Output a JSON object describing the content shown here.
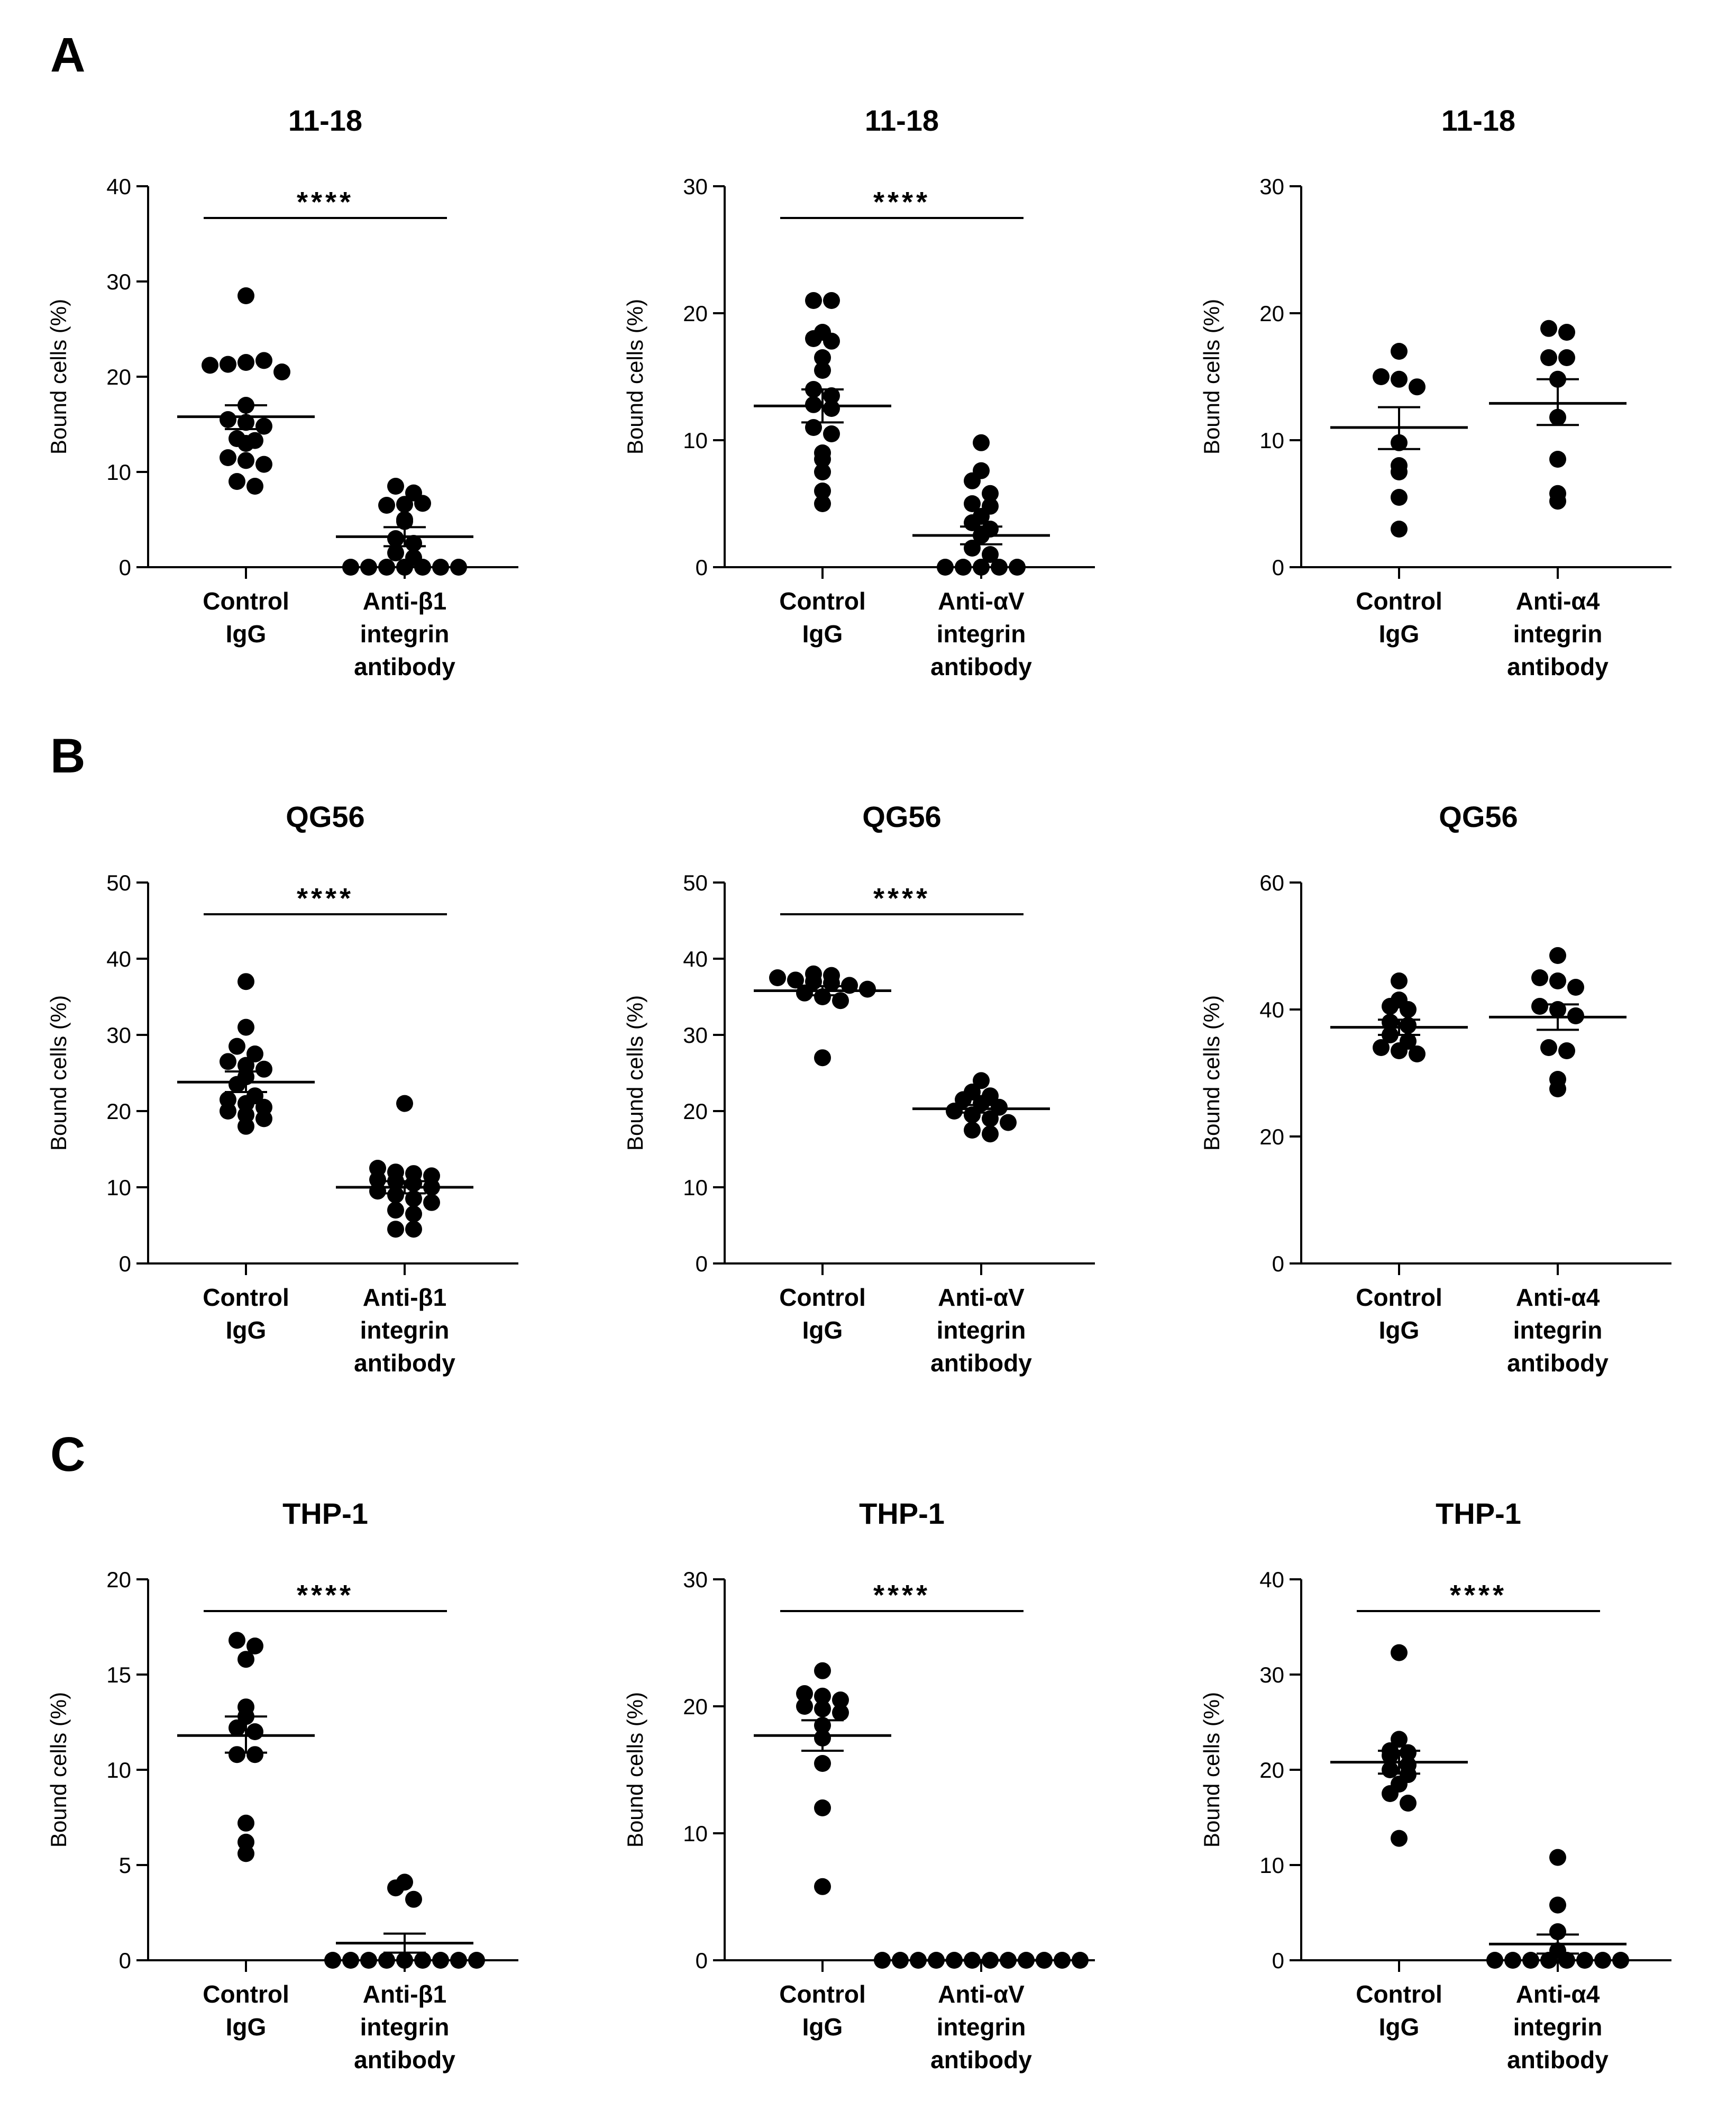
{
  "panel_letters": [
    "A",
    "B",
    "C"
  ],
  "chart_data": [
    {
      "type": "scatter",
      "panel": "A",
      "title": "11-18",
      "ylabel": "Bound cells (%)",
      "ylim": [
        0,
        40
      ],
      "yticks": [
        0,
        10,
        20,
        30,
        40
      ],
      "significance": "****",
      "categories": [
        [
          "Control",
          "IgG"
        ],
        [
          "Anti-β1",
          "integrin",
          "antibody"
        ]
      ],
      "series": [
        {
          "name": "Control IgG",
          "mean": 15.8,
          "sem_low": 14.5,
          "sem_high": 17.0,
          "values": [
            28.5,
            21.2,
            21.3,
            21.5,
            21.7,
            20.5,
            17.0,
            15.5,
            15.2,
            14.8,
            13.5,
            13.3,
            13.0,
            11.5,
            11.2,
            10.8,
            9.0,
            8.5
          ]
        },
        {
          "name": "Anti-β1 integrin antibody",
          "mean": 3.2,
          "sem_low": 2.2,
          "sem_high": 4.2,
          "values": [
            8.5,
            7.8,
            6.5,
            6.6,
            6.7,
            5.0,
            4.8,
            3.0,
            2.5,
            1.5,
            1.0,
            0,
            0,
            0,
            0,
            0,
            0,
            0
          ]
        }
      ]
    },
    {
      "type": "scatter",
      "panel": "A",
      "title": "11-18",
      "ylabel": "Bound cells (%)",
      "ylim": [
        0,
        30
      ],
      "yticks": [
        0,
        10,
        20,
        30
      ],
      "significance": "****",
      "categories": [
        [
          "Control",
          "IgG"
        ],
        [
          "Anti-αV",
          "integrin",
          "antibody"
        ]
      ],
      "series": [
        {
          "name": "Control IgG",
          "mean": 12.7,
          "sem_low": 11.4,
          "sem_high": 14.0,
          "values": [
            21.0,
            21.0,
            18.5,
            18.0,
            17.8,
            16.5,
            15.5,
            14.0,
            13.5,
            12.8,
            12.5,
            11.0,
            10.5,
            9.0,
            8.5,
            7.5,
            6.0,
            5.0
          ]
        },
        {
          "name": "Anti-αV integrin antibody",
          "mean": 2.5,
          "sem_low": 1.8,
          "sem_high": 3.2,
          "values": [
            9.8,
            7.6,
            6.8,
            5.8,
            5.0,
            4.8,
            4.0,
            3.5,
            3.0,
            2.5,
            1.5,
            1.0,
            0,
            0,
            0,
            0,
            0
          ]
        }
      ]
    },
    {
      "type": "scatter",
      "panel": "A",
      "title": "11-18",
      "ylabel": "Bound cells (%)",
      "ylim": [
        0,
        30
      ],
      "yticks": [
        0,
        10,
        20,
        30
      ],
      "significance": "",
      "categories": [
        [
          "Control",
          "IgG"
        ],
        [
          "Anti-α4",
          "integrin",
          "antibody"
        ]
      ],
      "series": [
        {
          "name": "Control IgG",
          "mean": 11.0,
          "sem_low": 9.3,
          "sem_high": 12.6,
          "values": [
            17.0,
            15.0,
            14.8,
            14.2,
            9.8,
            8.0,
            7.5,
            5.5,
            3.0
          ]
        },
        {
          "name": "Anti-α4 integrin antibody",
          "mean": 12.9,
          "sem_low": 11.2,
          "sem_high": 14.8,
          "values": [
            18.8,
            18.5,
            16.5,
            16.5,
            14.8,
            11.8,
            8.5,
            5.8,
            5.2
          ]
        }
      ]
    },
    {
      "type": "scatter",
      "panel": "B",
      "title": "QG56",
      "ylabel": "Bound cells (%)",
      "ylim": [
        0,
        50
      ],
      "yticks": [
        0,
        10,
        20,
        30,
        40,
        50
      ],
      "significance": "****",
      "categories": [
        [
          "Control",
          "IgG"
        ],
        [
          "Anti-β1",
          "integrin",
          "antibody"
        ]
      ],
      "series": [
        {
          "name": "Control IgG",
          "mean": 23.8,
          "sem_low": 22.5,
          "sem_high": 25.2,
          "values": [
            37.0,
            31.0,
            28.5,
            27.5,
            26.5,
            26.0,
            25.5,
            24.5,
            23.5,
            22.0,
            21.5,
            21.0,
            20.5,
            20.0,
            19.5,
            19.0,
            18.0
          ]
        },
        {
          "name": "Anti-β1 integrin antibody",
          "mean": 10.0,
          "sem_low": 9.2,
          "sem_high": 10.8,
          "values": [
            21.0,
            12.5,
            12.0,
            11.8,
            11.5,
            11.0,
            10.8,
            10.5,
            10.0,
            9.5,
            9.0,
            8.5,
            8.0,
            7.0,
            6.5,
            4.5,
            4.5
          ]
        }
      ]
    },
    {
      "type": "scatter",
      "panel": "B",
      "title": "QG56",
      "ylabel": "Bound cells (%)",
      "ylim": [
        0,
        50
      ],
      "yticks": [
        0,
        10,
        20,
        30,
        40,
        50
      ],
      "significance": "****",
      "categories": [
        [
          "Control",
          "IgG"
        ],
        [
          "Anti-αV",
          "integrin",
          "antibody"
        ]
      ],
      "series": [
        {
          "name": "Control IgG",
          "mean": 35.8,
          "sem_low": 35.2,
          "sem_high": 36.4,
          "values": [
            38.0,
            37.8,
            37.5,
            37.2,
            37.0,
            36.8,
            36.5,
            36.0,
            35.5,
            35.0,
            34.5,
            27.0
          ]
        },
        {
          "name": "Anti-αV integrin antibody",
          "mean": 20.3,
          "sem_low": 19.8,
          "sem_high": 20.8,
          "values": [
            24.0,
            22.5,
            22.0,
            21.5,
            21.0,
            20.5,
            20.0,
            19.5,
            19.0,
            18.5,
            17.5,
            17.0
          ]
        }
      ]
    },
    {
      "type": "scatter",
      "panel": "B",
      "title": "QG56",
      "ylabel": "Bound cells (%)",
      "ylim": [
        0,
        60
      ],
      "yticks": [
        0,
        20,
        40,
        60
      ],
      "significance": "",
      "categories": [
        [
          "Control",
          "IgG"
        ],
        [
          "Anti-α4",
          "integrin",
          "antibody"
        ]
      ],
      "series": [
        {
          "name": "Control IgG",
          "mean": 37.2,
          "sem_low": 36.0,
          "sem_high": 38.4,
          "values": [
            44.5,
            41.5,
            40.5,
            40.0,
            38.0,
            37.5,
            36.0,
            35.0,
            34.0,
            33.5,
            33.0
          ]
        },
        {
          "name": "Anti-α4 integrin antibody",
          "mean": 38.8,
          "sem_low": 36.8,
          "sem_high": 40.8,
          "values": [
            48.5,
            45.0,
            44.5,
            43.5,
            40.5,
            40.0,
            39.0,
            34.0,
            33.5,
            29.0,
            27.5
          ]
        }
      ]
    },
    {
      "type": "scatter",
      "panel": "C",
      "title": "THP-1",
      "ylabel": "Bound cells (%)",
      "ylim": [
        0,
        20
      ],
      "yticks": [
        0,
        5,
        10,
        15,
        20
      ],
      "significance": "****",
      "categories": [
        [
          "Control",
          "IgG"
        ],
        [
          "Anti-β1",
          "integrin",
          "antibody"
        ]
      ],
      "series": [
        {
          "name": "Control IgG",
          "mean": 11.8,
          "sem_low": 10.9,
          "sem_high": 12.8,
          "values": [
            16.8,
            16.5,
            15.8,
            13.3,
            12.8,
            12.2,
            12.0,
            10.8,
            10.8,
            7.2,
            6.2,
            5.6
          ]
        },
        {
          "name": "Anti-β1 integrin antibody",
          "mean": 0.9,
          "sem_low": 0.4,
          "sem_high": 1.4,
          "values": [
            4.1,
            3.8,
            3.2,
            0,
            0,
            0,
            0,
            0,
            0,
            0,
            0,
            0
          ]
        }
      ]
    },
    {
      "type": "scatter",
      "panel": "C",
      "title": "THP-1",
      "ylabel": "Bound cells (%)",
      "ylim": [
        0,
        30
      ],
      "yticks": [
        0,
        10,
        20,
        30
      ],
      "significance": "****",
      "categories": [
        [
          "Control",
          "IgG"
        ],
        [
          "Anti-αV",
          "integrin",
          "antibody"
        ]
      ],
      "series": [
        {
          "name": "Control IgG",
          "mean": 17.7,
          "sem_low": 16.5,
          "sem_high": 18.9,
          "values": [
            22.8,
            21.0,
            20.8,
            20.5,
            20.0,
            19.8,
            19.5,
            18.5,
            17.5,
            15.5,
            12.0,
            5.8
          ]
        },
        {
          "name": "Anti-αV integrin antibody",
          "mean": 0,
          "sem_low": 0,
          "sem_high": 0,
          "values": [
            0,
            0,
            0,
            0,
            0,
            0,
            0,
            0,
            0,
            0,
            0,
            0
          ]
        }
      ]
    },
    {
      "type": "scatter",
      "panel": "C",
      "title": "THP-1",
      "ylabel": "Bound cells (%)",
      "ylim": [
        0,
        40
      ],
      "yticks": [
        0,
        10,
        20,
        30,
        40
      ],
      "significance": "****",
      "categories": [
        [
          "Control",
          "IgG"
        ],
        [
          "Anti-α4",
          "integrin",
          "antibody"
        ]
      ],
      "series": [
        {
          "name": "Control IgG",
          "mean": 20.8,
          "sem_low": 19.6,
          "sem_high": 22.0,
          "values": [
            32.3,
            23.2,
            22.0,
            21.8,
            21.5,
            20.5,
            20.0,
            19.5,
            18.5,
            17.5,
            16.5,
            12.8
          ]
        },
        {
          "name": "Anti-α4 integrin antibody",
          "mean": 1.7,
          "sem_low": 0.7,
          "sem_high": 2.7,
          "values": [
            10.8,
            5.8,
            3.0,
            1.0,
            0,
            0,
            0,
            0,
            0,
            0,
            0,
            0
          ]
        }
      ]
    }
  ]
}
